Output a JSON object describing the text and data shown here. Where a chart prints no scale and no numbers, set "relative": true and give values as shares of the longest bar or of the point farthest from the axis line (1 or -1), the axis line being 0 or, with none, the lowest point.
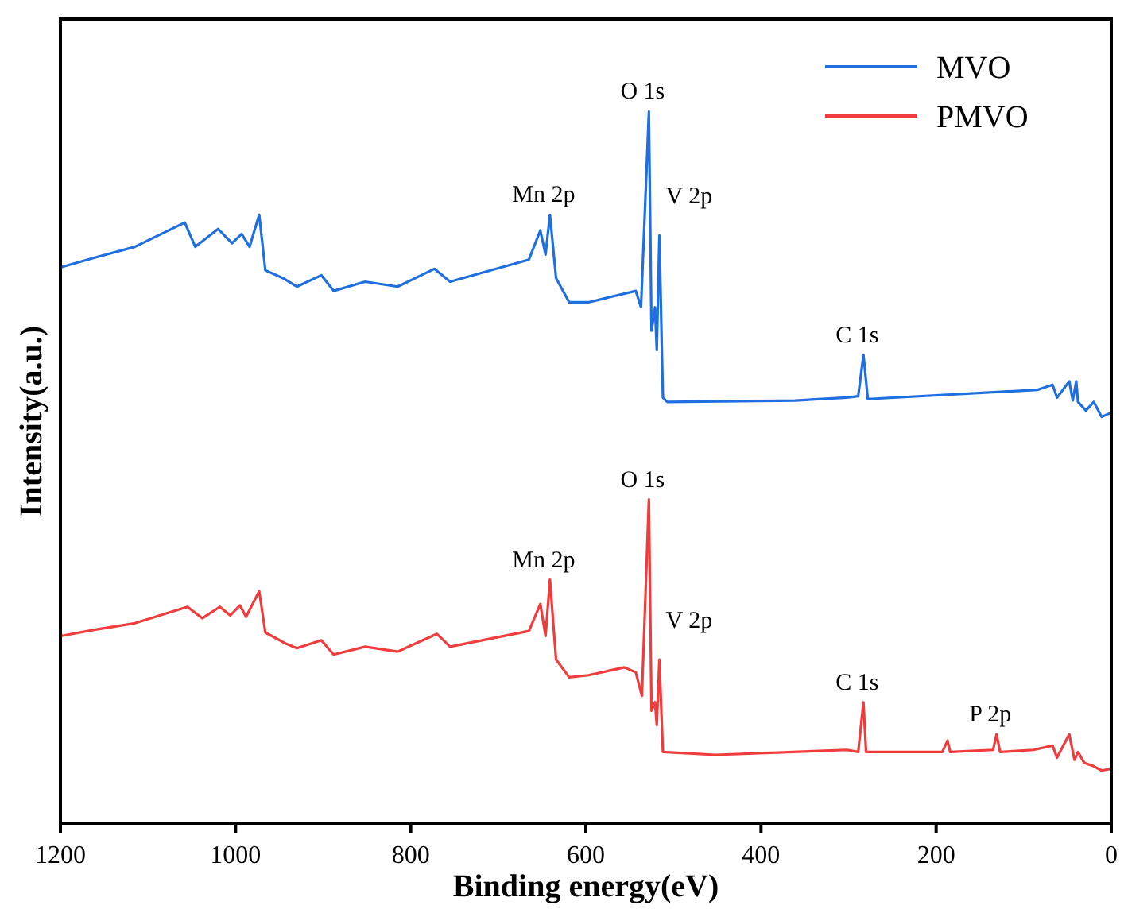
{
  "chart_data": {
    "type": "line",
    "relative": true,
    "xlabel": "Binding energy(eV)",
    "ylabel": "Intensity(a.u.)",
    "xlim": [
      1200,
      0
    ],
    "xticks": [
      1200,
      1000,
      800,
      600,
      400,
      200,
      0
    ],
    "legend": "top right",
    "tick_labels": "x",
    "series": [
      {
        "name": "MVO",
        "color": "#1f6fe0",
        "x": [
          1200,
          1160,
          1115,
          1058,
          1046,
          1020,
          1004,
          993,
          984,
          973,
          966,
          946,
          930,
          902,
          888,
          852,
          815,
          773,
          755,
          665,
          652,
          646,
          641,
          634,
          619,
          597,
          543,
          537,
          528,
          525,
          521,
          519,
          516,
          512,
          507,
          361,
          302,
          289,
          283,
          278,
          84,
          67,
          62,
          48,
          44,
          40,
          38,
          29,
          20,
          11,
          2
        ],
        "values": [
          0.781,
          0.795,
          0.81,
          0.844,
          0.81,
          0.835,
          0.815,
          0.828,
          0.81,
          0.855,
          0.777,
          0.766,
          0.754,
          0.77,
          0.748,
          0.761,
          0.754,
          0.779,
          0.761,
          0.792,
          0.833,
          0.799,
          0.855,
          0.766,
          0.732,
          0.732,
          0.748,
          0.725,
          1,
          0.692,
          0.725,
          0.665,
          0.826,
          0.598,
          0.592,
          0.594,
          0.598,
          0.6,
          0.658,
          0.596,
          0.609,
          0.616,
          0.598,
          0.621,
          0.594,
          0.621,
          0.592,
          0.58,
          0.592,
          0.571,
          0.576
        ]
      },
      {
        "name": "PMVO",
        "color": "#f03c3c",
        "x": [
          1200,
          1160,
          1115,
          1055,
          1038,
          1018,
          1006,
          995,
          988,
          973,
          966,
          942,
          930,
          902,
          888,
          852,
          815,
          770,
          755,
          665,
          652,
          646,
          641,
          634,
          619,
          597,
          556,
          543,
          536,
          528,
          525,
          521,
          519,
          516,
          512,
          452,
          302,
          289,
          283,
          280,
          193,
          187,
          184,
          135,
          131,
          127,
          89,
          67,
          62,
          48,
          42,
          38,
          31,
          20,
          11,
          2
        ],
        "values": [
          0.263,
          0.272,
          0.281,
          0.304,
          0.288,
          0.304,
          0.292,
          0.306,
          0.29,
          0.326,
          0.268,
          0.252,
          0.246,
          0.257,
          0.237,
          0.248,
          0.241,
          0.266,
          0.248,
          0.27,
          0.308,
          0.263,
          0.342,
          0.23,
          0.205,
          0.208,
          0.219,
          0.212,
          0.179,
          0.455,
          0.158,
          0.17,
          0.138,
          0.23,
          0.1,
          0.096,
          0.103,
          0.1,
          0.17,
          0.1,
          0.1,
          0.116,
          0.1,
          0.103,
          0.125,
          0.1,
          0.103,
          0.109,
          0.092,
          0.125,
          0.089,
          0.1,
          0.085,
          0.08,
          0.074,
          0.076
        ]
      }
    ],
    "annotations": [
      {
        "text": "O 1s",
        "x": 528,
        "y": 1
      },
      {
        "text": "Mn 2p",
        "x": 641,
        "y": 0.855
      },
      {
        "text": "V 2p",
        "x": 516,
        "y": 0.826
      },
      {
        "text": "C 1s",
        "x": 283,
        "y": 0.658
      },
      {
        "text": "O 1s",
        "x": 528,
        "y": 0.455
      },
      {
        "text": "Mn 2p",
        "x": 641,
        "y": 0.342
      },
      {
        "text": "V 2p",
        "x": 516,
        "y": 0.23
      },
      {
        "text": "C 1s",
        "x": 283,
        "y": 0.17
      },
      {
        "text": "P 2p",
        "x": 131,
        "y": 0.125
      }
    ]
  }
}
